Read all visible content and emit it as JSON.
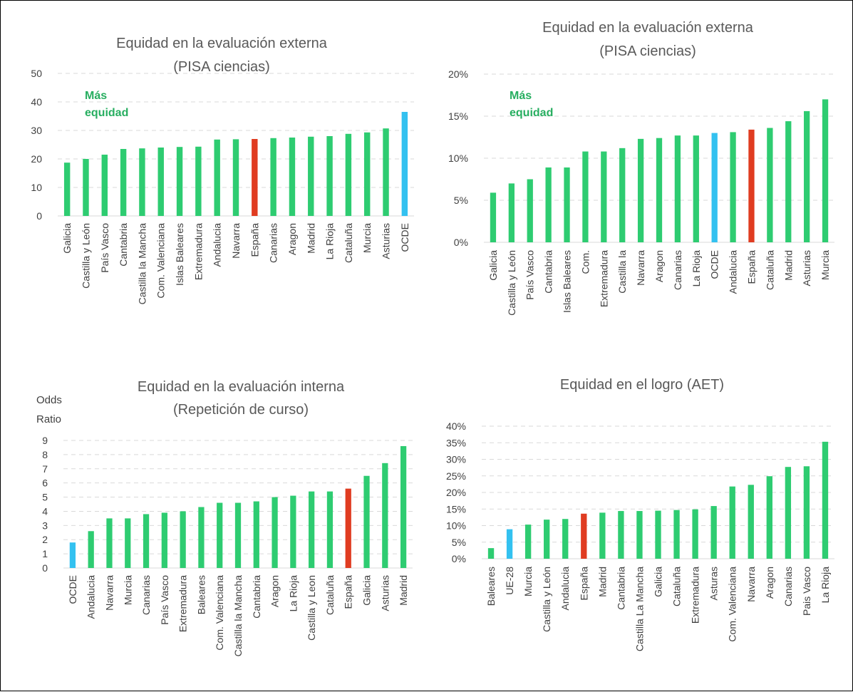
{
  "colors": {
    "default": "#2ecc71",
    "highlight_red": "#e03c21",
    "highlight_blue": "#33c1f0"
  },
  "chart_data": [
    {
      "type": "bar",
      "title": [
        "Equidad en la evaluación externa",
        "(PISA ciencias)"
      ],
      "note": [
        "Más",
        "equidad"
      ],
      "ylim": [
        0,
        50
      ],
      "yticks": [
        "0",
        "10",
        "20",
        "30",
        "40",
        "50"
      ],
      "categories": [
        "Galicia",
        "Castilla y León",
        "País Vasco",
        "Cantabria",
        "Castilla la Mancha",
        "Com. Valenciana",
        "Islas Baleares",
        "Extremadura",
        "Andalucia",
        "Navarra",
        "España",
        "Canarias",
        "Aragon",
        "Madrid",
        "La Rioja",
        "Cataluña",
        "Murcia",
        "Asturias",
        "OCDE"
      ],
      "values": [
        18.7,
        20.0,
        21.5,
        23.5,
        23.7,
        24.0,
        24.2,
        24.3,
        26.8,
        26.9,
        27.0,
        27.3,
        27.5,
        27.8,
        28.0,
        28.8,
        29.3,
        30.7,
        36.5
      ],
      "highlight": {
        "España": "highlight_red",
        "OCDE": "highlight_blue"
      },
      "grid": true
    },
    {
      "type": "bar",
      "title": [
        "Equidad en la evaluación externa",
        "(PISA ciencias)"
      ],
      "note": [
        "Más",
        "equidad"
      ],
      "ylim": [
        0,
        20
      ],
      "yticks": [
        "0%",
        "5%",
        "10%",
        "15%",
        "20%"
      ],
      "categories": [
        "Galicia",
        "Castilla y León",
        "País Vasco",
        "Cantabria",
        "Islas Baleares",
        "Com.",
        "Extremadura",
        "Castilla la",
        "Navarra",
        "Aragon",
        "Canarias",
        "La Rioja",
        "OCDE",
        "Andalucia",
        "España",
        "Cataluña",
        "Madrid",
        "Asturias",
        "Murcia"
      ],
      "values": [
        5.9,
        7.0,
        7.5,
        8.9,
        8.9,
        10.8,
        10.8,
        11.2,
        12.3,
        12.4,
        12.7,
        12.7,
        13.0,
        13.1,
        13.4,
        13.6,
        14.4,
        15.6,
        17.0
      ],
      "highlight": {
        "España": "highlight_red",
        "OCDE": "highlight_blue"
      },
      "grid": true
    },
    {
      "type": "bar",
      "title": [
        "Equidad en la evaluación interna",
        "(Repetición de curso)"
      ],
      "ylabel": [
        "Odds",
        "Ratio"
      ],
      "ylim": [
        0,
        9
      ],
      "yticks": [
        "0",
        "1",
        "2",
        "3",
        "4",
        "5",
        "6",
        "7",
        "8",
        "9"
      ],
      "categories": [
        "OCDE",
        "Andalucia",
        "Navarra",
        "Murcia",
        "Canarias",
        "País Vasco",
        "Extremadura",
        "Baleares",
        "Com. Valenciana",
        "Castilla la Mancha",
        "Cantabria",
        "Aragon",
        "La Rioja",
        "Castilla y Leon",
        "Cataluña",
        "España",
        "Galicia",
        "Asturias",
        "Madrid"
      ],
      "values": [
        1.8,
        2.6,
        3.5,
        3.5,
        3.8,
        3.9,
        4.0,
        4.3,
        4.6,
        4.6,
        4.7,
        5.0,
        5.1,
        5.4,
        5.4,
        5.6,
        6.5,
        7.4,
        8.6
      ],
      "highlight": {
        "España": "highlight_red",
        "OCDE": "highlight_blue"
      },
      "grid": true
    },
    {
      "type": "bar",
      "title": [
        "Equidad en el logro (AET)"
      ],
      "ylim": [
        0,
        40
      ],
      "yticks": [
        "0%",
        "5%",
        "10%",
        "15%",
        "20%",
        "25%",
        "30%",
        "35%",
        "40%"
      ],
      "categories": [
        "Baleares",
        "UE-28",
        "Murcia",
        "Castilla y León",
        "Andalucia",
        "España",
        "Madrid",
        "Cantabria",
        "Castilla La Mancha",
        "Galicia",
        "Cataluña",
        "Extremadura",
        "Asturas",
        "Com. Valenciana",
        "Navarra",
        "Aragon",
        "Canarias",
        "Pais Vasco",
        "La Rioja"
      ],
      "values": [
        3.2,
        8.9,
        10.3,
        11.8,
        12.0,
        13.6,
        13.9,
        14.4,
        14.4,
        14.5,
        14.7,
        14.9,
        15.9,
        21.8,
        22.3,
        24.9,
        27.7,
        27.9,
        35.3
      ],
      "highlight": {
        "España": "highlight_red",
        "UE-28": "highlight_blue"
      },
      "grid": true
    }
  ]
}
